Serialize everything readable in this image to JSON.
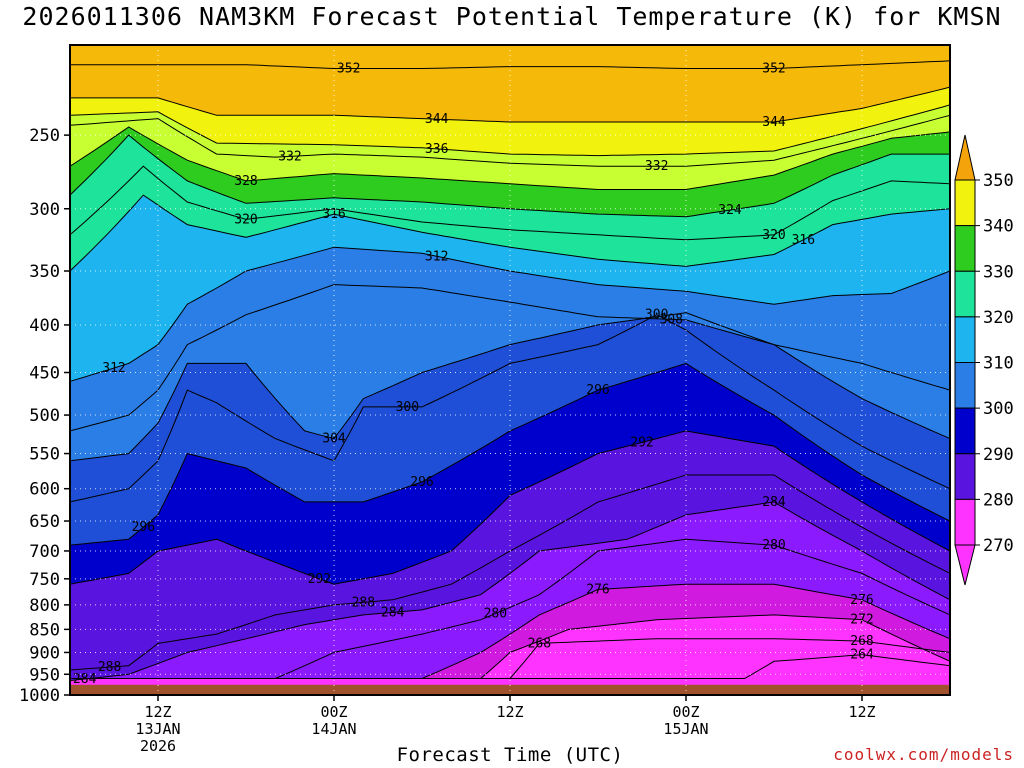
{
  "title": "2026011306 NAM3KM Forecast Potential Temperature (K) for KMSN",
  "xlabel": "Forecast Time (UTC)",
  "credit": "coolwx.com/models",
  "colors": {
    "ground": "#a0522d",
    "bands": [
      "#ff33ff",
      "#d11ae0",
      "#8c1aff",
      "#5a14e0",
      "#0000cc",
      "#1f4fd6",
      "#2a7ee6",
      "#1eb4f0",
      "#1ee39a",
      "#2ecc1f",
      "#c7ff33",
      "#f2f20f",
      "#f5b90a"
    ]
  },
  "chart_data": {
    "type": "heatmap",
    "title": "2026011306 NAM3KM Forecast Potential Temperature (K) for KMSN",
    "xlabel": "Forecast Time (UTC)",
    "ylabel": "",
    "x_range_hours": [
      0,
      60
    ],
    "y_axis": "pressure (hPa), log scale, inverted",
    "y_range": [
      1000,
      200
    ],
    "y_ticks": [
      250,
      300,
      350,
      400,
      450,
      500,
      550,
      600,
      650,
      700,
      750,
      800,
      850,
      900,
      950,
      1000
    ],
    "x_ticks": [
      {
        "hour": 6,
        "lines": [
          "12Z",
          "13JAN",
          "2026"
        ]
      },
      {
        "hour": 18,
        "lines": [
          "00Z",
          "14JAN"
        ]
      },
      {
        "hour": 30,
        "lines": [
          "12Z"
        ]
      },
      {
        "hour": 42,
        "lines": [
          "00Z",
          "15JAN"
        ]
      },
      {
        "hour": 54,
        "lines": [
          "12Z"
        ]
      }
    ],
    "colorbar": {
      "labels": [
        "350",
        "340",
        "330",
        "320",
        "310",
        "300",
        "290",
        "280",
        "270"
      ],
      "levels": [
        270,
        280,
        290,
        300,
        310,
        320,
        330,
        340,
        350
      ]
    },
    "isentropes": [
      {
        "theta": 352,
        "points": [
          [
            0,
            210
          ],
          [
            12,
            210
          ],
          [
            18,
            212
          ],
          [
            24,
            212
          ],
          [
            30,
            211
          ],
          [
            36,
            211
          ],
          [
            42,
            212
          ],
          [
            48,
            212
          ],
          [
            54,
            210
          ],
          [
            60,
            208
          ]
        ],
        "label_at": [
          19,
          48
        ]
      },
      {
        "theta": 344,
        "points": [
          [
            0,
            228
          ],
          [
            6,
            228
          ],
          [
            10,
            238
          ],
          [
            18,
            238
          ],
          [
            24,
            240
          ],
          [
            30,
            242
          ],
          [
            36,
            242
          ],
          [
            42,
            242
          ],
          [
            48,
            242
          ],
          [
            54,
            234
          ],
          [
            60,
            222
          ]
        ],
        "label_at": [
          25,
          48
        ]
      },
      {
        "theta": 336,
        "points": [
          [
            0,
            238
          ],
          [
            6,
            236
          ],
          [
            10,
            255
          ],
          [
            18,
            256
          ],
          [
            24,
            258
          ],
          [
            30,
            262
          ],
          [
            36,
            263
          ],
          [
            42,
            262
          ],
          [
            48,
            260
          ],
          [
            54,
            246
          ],
          [
            60,
            232
          ]
        ],
        "label_at": [
          25
        ]
      },
      {
        "theta": 332,
        "points": [
          [
            0,
            244
          ],
          [
            6,
            240
          ],
          [
            10,
            262
          ],
          [
            14,
            264
          ],
          [
            18,
            262
          ],
          [
            24,
            264
          ],
          [
            30,
            268
          ],
          [
            36,
            270
          ],
          [
            42,
            270
          ],
          [
            48,
            266
          ],
          [
            54,
            252
          ],
          [
            60,
            238
          ]
        ],
        "label_at": [
          15,
          40
        ]
      },
      {
        "theta": 328,
        "points": [
          [
            0,
            270
          ],
          [
            4,
            245
          ],
          [
            8,
            266
          ],
          [
            12,
            280
          ],
          [
            18,
            275
          ],
          [
            24,
            278
          ],
          [
            30,
            282
          ],
          [
            36,
            286
          ],
          [
            42,
            286
          ],
          [
            48,
            276
          ],
          [
            52,
            262
          ],
          [
            56,
            252
          ],
          [
            60,
            248
          ]
        ],
        "label_at": [
          12
        ]
      },
      {
        "theta": 324,
        "points": [
          [
            0,
            290
          ],
          [
            4,
            250
          ],
          [
            8,
            280
          ],
          [
            12,
            296
          ],
          [
            18,
            292
          ],
          [
            24,
            295
          ],
          [
            30,
            300
          ],
          [
            36,
            304
          ],
          [
            42,
            306
          ],
          [
            48,
            296
          ],
          [
            52,
            276
          ],
          [
            56,
            262
          ],
          [
            60,
            262
          ]
        ],
        "label_at": [
          45
        ]
      },
      {
        "theta": 320,
        "points": [
          [
            0,
            320
          ],
          [
            5,
            270
          ],
          [
            8,
            295
          ],
          [
            12,
            308
          ],
          [
            18,
            300
          ],
          [
            24,
            310
          ],
          [
            30,
            316
          ],
          [
            36,
            320
          ],
          [
            42,
            324
          ],
          [
            48,
            320
          ],
          [
            52,
            294
          ],
          [
            56,
            280
          ],
          [
            60,
            282
          ]
        ],
        "label_at": [
          12,
          48
        ]
      },
      {
        "theta": 316,
        "points": [
          [
            0,
            350
          ],
          [
            5,
            290
          ],
          [
            8,
            312
          ],
          [
            12,
            322
          ],
          [
            18,
            304
          ],
          [
            24,
            318
          ],
          [
            30,
            330
          ],
          [
            36,
            340
          ],
          [
            42,
            346
          ],
          [
            48,
            336
          ],
          [
            52,
            312
          ],
          [
            56,
            304
          ],
          [
            60,
            300
          ]
        ],
        "label_at": [
          18,
          50
        ]
      },
      {
        "theta": 312,
        "points": [
          [
            0,
            460
          ],
          [
            4,
            440
          ],
          [
            6,
            420
          ],
          [
            8,
            380
          ],
          [
            12,
            350
          ],
          [
            18,
            330
          ],
          [
            24,
            335
          ],
          [
            30,
            350
          ],
          [
            36,
            362
          ],
          [
            42,
            368
          ],
          [
            48,
            380
          ],
          [
            52,
            372
          ],
          [
            56,
            370
          ],
          [
            60,
            350
          ]
        ],
        "label_at": [
          3,
          25
        ]
      },
      {
        "theta": 308,
        "points": [
          [
            0,
            520
          ],
          [
            4,
            500
          ],
          [
            6,
            470
          ],
          [
            8,
            420
          ],
          [
            12,
            390
          ],
          [
            18,
            362
          ],
          [
            24,
            365
          ],
          [
            30,
            378
          ],
          [
            36,
            392
          ],
          [
            42,
            395
          ],
          [
            48,
            420
          ],
          [
            54,
            440
          ],
          [
            60,
            470
          ]
        ],
        "label_at": [
          41
        ]
      },
      {
        "theta": 304,
        "points": [
          [
            0,
            560
          ],
          [
            4,
            550
          ],
          [
            6,
            510
          ],
          [
            8,
            440
          ],
          [
            12,
            440
          ],
          [
            16,
            520
          ],
          [
            18,
            530
          ],
          [
            20,
            480
          ],
          [
            24,
            450
          ],
          [
            30,
            420
          ],
          [
            36,
            400
          ],
          [
            42,
            388
          ],
          [
            48,
            420
          ],
          [
            54,
            480
          ],
          [
            60,
            530
          ]
        ],
        "label_at": [
          18
        ]
      },
      {
        "theta": 300,
        "points": [
          [
            0,
            620
          ],
          [
            4,
            600
          ],
          [
            6,
            560
          ],
          [
            8,
            470
          ],
          [
            10,
            485
          ],
          [
            14,
            530
          ],
          [
            18,
            560
          ],
          [
            20,
            490
          ],
          [
            24,
            490
          ],
          [
            30,
            440
          ],
          [
            36,
            420
          ],
          [
            40,
            390
          ],
          [
            42,
            405
          ],
          [
            48,
            470
          ],
          [
            54,
            540
          ],
          [
            60,
            600
          ]
        ],
        "label_at": [
          23,
          40
        ]
      },
      {
        "theta": 296,
        "points": [
          [
            0,
            690
          ],
          [
            4,
            680
          ],
          [
            6,
            640
          ],
          [
            8,
            550
          ],
          [
            12,
            570
          ],
          [
            16,
            620
          ],
          [
            20,
            620
          ],
          [
            24,
            590
          ],
          [
            30,
            520
          ],
          [
            36,
            470
          ],
          [
            42,
            440
          ],
          [
            48,
            500
          ],
          [
            54,
            580
          ],
          [
            60,
            650
          ]
        ],
        "label_at": [
          5,
          24,
          36
        ]
      },
      {
        "theta": 292,
        "points": [
          [
            0,
            760
          ],
          [
            4,
            740
          ],
          [
            6,
            700
          ],
          [
            10,
            680
          ],
          [
            14,
            720
          ],
          [
            18,
            760
          ],
          [
            22,
            740
          ],
          [
            26,
            700
          ],
          [
            30,
            610
          ],
          [
            36,
            550
          ],
          [
            42,
            520
          ],
          [
            48,
            540
          ],
          [
            54,
            620
          ],
          [
            60,
            700
          ]
        ],
        "label_at": [
          17,
          39
        ]
      },
      {
        "theta": 288,
        "points": [
          [
            0,
            940
          ],
          [
            4,
            930
          ],
          [
            6,
            880
          ],
          [
            10,
            860
          ],
          [
            14,
            820
          ],
          [
            18,
            800
          ],
          [
            22,
            790
          ],
          [
            26,
            760
          ],
          [
            30,
            700
          ],
          [
            36,
            620
          ],
          [
            42,
            580
          ],
          [
            48,
            580
          ],
          [
            54,
            660
          ],
          [
            60,
            740
          ]
        ],
        "label_at": [
          2.7,
          20
        ]
      },
      {
        "theta": 284,
        "points": [
          [
            0,
            965
          ],
          [
            4,
            950
          ],
          [
            8,
            900
          ],
          [
            12,
            870
          ],
          [
            16,
            840
          ],
          [
            20,
            820
          ],
          [
            24,
            810
          ],
          [
            28,
            780
          ],
          [
            32,
            700
          ],
          [
            38,
            680
          ],
          [
            42,
            640
          ],
          [
            48,
            620
          ],
          [
            54,
            700
          ],
          [
            60,
            790
          ]
        ],
        "label_at": [
          1,
          22,
          48
        ]
      },
      {
        "theta": 280,
        "points": [
          [
            14,
            960
          ],
          [
            18,
            900
          ],
          [
            24,
            860
          ],
          [
            28,
            830
          ],
          [
            32,
            780
          ],
          [
            36,
            700
          ],
          [
            42,
            680
          ],
          [
            48,
            690
          ],
          [
            54,
            740
          ],
          [
            60,
            820
          ]
        ],
        "label_at": [
          29,
          48
        ]
      },
      {
        "theta": 276,
        "points": [
          [
            24,
            960
          ],
          [
            28,
            900
          ],
          [
            32,
            820
          ],
          [
            36,
            770
          ],
          [
            42,
            760
          ],
          [
            48,
            760
          ],
          [
            54,
            790
          ],
          [
            60,
            870
          ]
        ],
        "label_at": [
          36,
          54
        ]
      },
      {
        "theta": 272,
        "points": [
          [
            28,
            960
          ],
          [
            30,
            900
          ],
          [
            34,
            850
          ],
          [
            40,
            830
          ],
          [
            48,
            820
          ],
          [
            54,
            830
          ],
          [
            60,
            920
          ]
        ],
        "label_at": [
          54
        ]
      },
      {
        "theta": 268,
        "points": [
          [
            30,
            960
          ],
          [
            32,
            880
          ],
          [
            40,
            870
          ],
          [
            48,
            870
          ],
          [
            54,
            875
          ],
          [
            60,
            900
          ]
        ],
        "label_at": [
          32,
          54
        ]
      },
      {
        "theta": 264,
        "points": [
          [
            46,
            960
          ],
          [
            48,
            920
          ],
          [
            54,
            905
          ],
          [
            60,
            930
          ]
        ],
        "label_at": [
          54
        ]
      }
    ]
  }
}
